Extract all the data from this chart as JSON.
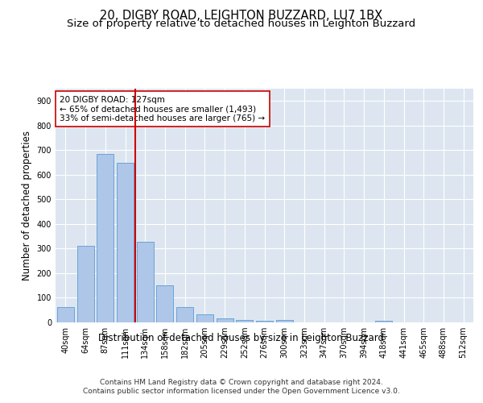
{
  "title": "20, DIGBY ROAD, LEIGHTON BUZZARD, LU7 1BX",
  "subtitle": "Size of property relative to detached houses in Leighton Buzzard",
  "xlabel": "Distribution of detached houses by size in Leighton Buzzard",
  "ylabel": "Number of detached properties",
  "bar_color": "#aec6e8",
  "bar_edge_color": "#5b9bd5",
  "background_color": "#dde6f0",
  "grid_color": "#ffffff",
  "annotation_line_color": "#cc0000",
  "annotation_box_color": "#ffffff",
  "annotation_box_edge": "#cc0000",
  "categories": [
    "40sqm",
    "64sqm",
    "87sqm",
    "111sqm",
    "134sqm",
    "158sqm",
    "182sqm",
    "205sqm",
    "229sqm",
    "252sqm",
    "276sqm",
    "300sqm",
    "323sqm",
    "347sqm",
    "370sqm",
    "394sqm",
    "418sqm",
    "441sqm",
    "465sqm",
    "488sqm",
    "512sqm"
  ],
  "values": [
    63,
    310,
    685,
    650,
    328,
    150,
    63,
    32,
    18,
    10,
    5,
    10,
    0,
    0,
    0,
    0,
    5,
    0,
    0,
    0,
    0
  ],
  "property_label": "20 DIGBY ROAD: 127sqm",
  "annotation_line1": "← 65% of detached houses are smaller (1,493)",
  "annotation_line2": "33% of semi-detached houses are larger (765) →",
  "vline_bin": 3.5,
  "ylim": [
    0,
    950
  ],
  "yticks": [
    0,
    100,
    200,
    300,
    400,
    500,
    600,
    700,
    800,
    900
  ],
  "footer_line1": "Contains HM Land Registry data © Crown copyright and database right 2024.",
  "footer_line2": "Contains public sector information licensed under the Open Government Licence v3.0.",
  "title_fontsize": 10.5,
  "subtitle_fontsize": 9.5,
  "axis_label_fontsize": 8.5,
  "tick_fontsize": 7,
  "footer_fontsize": 6.5,
  "annotation_fontsize": 7.5
}
